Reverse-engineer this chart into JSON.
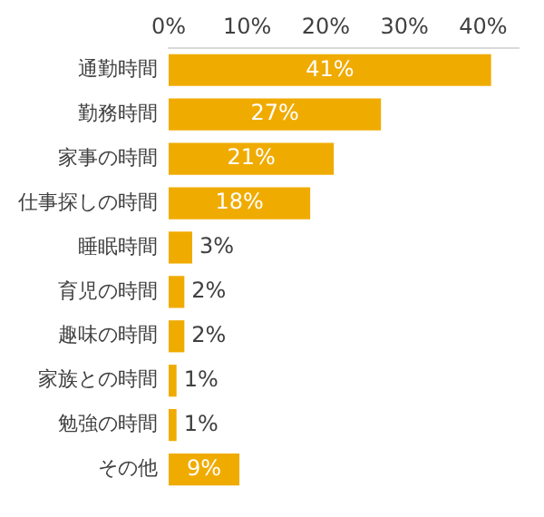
{
  "chart_data": {
    "type": "bar",
    "orientation": "horizontal",
    "categories": [
      "通勤時間",
      "勤務時間",
      "家事の時間",
      "仕事探しの時間",
      "睡眠時間",
      "育児の時間",
      "趣味の時間",
      "家族との時間",
      "勉強の時間",
      "その他"
    ],
    "values": [
      41,
      27,
      21,
      18,
      3,
      2,
      2,
      1,
      1,
      9
    ],
    "value_labels": [
      "41%",
      "27%",
      "21%",
      "18%",
      "3%",
      "2%",
      "2%",
      "1%",
      "1%",
      "9%"
    ],
    "color": "#f0ab00",
    "xlim": [
      0,
      44.5
    ],
    "xticks": [
      {
        "value": 0,
        "label": "0%"
      },
      {
        "value": 10,
        "label": "10%"
      },
      {
        "value": 20,
        "label": "20%"
      },
      {
        "value": 30,
        "label": "30%"
      },
      {
        "value": 40,
        "label": "40%"
      }
    ],
    "grid": false,
    "legend": false
  }
}
